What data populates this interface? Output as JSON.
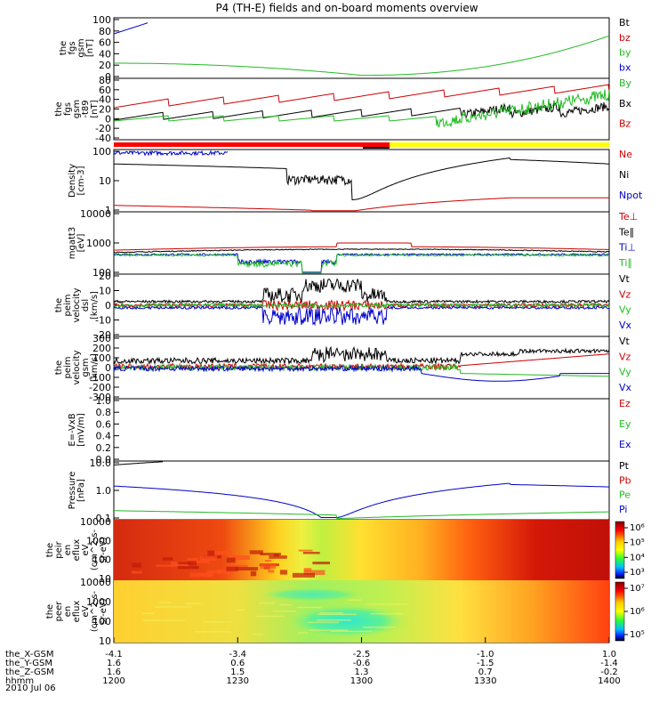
{
  "title": "P4 (TH-E) fields and on-board moments overview",
  "panels": [
    {
      "ylabel": [
        "the",
        "fgs",
        "gsm",
        "[nT]"
      ],
      "ticks": [
        "100",
        "80",
        "60",
        "40",
        "20",
        "0"
      ],
      "legend": [
        {
          "text": "Bt",
          "color": "#000000"
        },
        {
          "text": "bz",
          "color": "#cc0000"
        },
        {
          "text": "by",
          "color": "#22bb22"
        },
        {
          "text": "bx",
          "color": "#0000cc"
        }
      ]
    },
    {
      "ylabel": [
        "the",
        "fgs",
        "gsm",
        "-t89",
        "[nT]"
      ],
      "ticks": [
        "80",
        "60",
        "40",
        "20",
        "0",
        "-20",
        "-40"
      ],
      "legend": [
        {
          "text": "By",
          "color": "#22bb22"
        },
        {
          "text": "Bx",
          "color": "#000000"
        },
        {
          "text": "Bz",
          "color": "#cc0000"
        }
      ]
    },
    {
      "ylabel": [
        "Density",
        "[cm-3]"
      ],
      "ticks": [
        "100",
        "10",
        "1"
      ],
      "legend": [
        {
          "text": "Ne",
          "color": "#cc0000"
        },
        {
          "text": "Ni",
          "color": "#000000"
        },
        {
          "text": "Npot",
          "color": "#0000cc"
        }
      ]
    },
    {
      "ylabel": [
        "mgatt3",
        "[eV]"
      ],
      "ticks": [
        "10000",
        "1000",
        "100"
      ],
      "legend": [
        {
          "text": "Te⊥",
          "color": "#cc0000"
        },
        {
          "text": "Te∥",
          "color": "#000000"
        },
        {
          "text": "Ti⊥",
          "color": "#0000cc"
        },
        {
          "text": "Ti∥",
          "color": "#22bb22"
        }
      ]
    },
    {
      "ylabel": [
        "the",
        "peim",
        "velocity",
        "dsl",
        "[km/s]"
      ],
      "ticks": [
        "20",
        "10",
        "0",
        "-10",
        "-20"
      ],
      "legend": [
        {
          "text": "Vt",
          "color": "#000000"
        },
        {
          "text": "Vz",
          "color": "#cc0000"
        },
        {
          "text": "Vy",
          "color": "#22bb22"
        },
        {
          "text": "Vx",
          "color": "#0000cc"
        }
      ]
    },
    {
      "ylabel": [
        "the",
        "peim",
        "velocity",
        "gsm",
        "[km/s]"
      ],
      "ticks": [
        "300",
        "200",
        "100",
        "0",
        "-100",
        "-200",
        "-300"
      ],
      "legend": [
        {
          "text": "Vt",
          "color": "#000000"
        },
        {
          "text": "Vz",
          "color": "#cc0000"
        },
        {
          "text": "Vy",
          "color": "#22bb22"
        },
        {
          "text": "Vx",
          "color": "#0000cc"
        }
      ]
    },
    {
      "ylabel": [
        "E=-VxB",
        "[mV/m]"
      ],
      "ticks": [
        "1.0",
        "0.8",
        "0.6",
        "0.4",
        "0.2",
        "0.0"
      ],
      "legend": [
        {
          "text": "Ez",
          "color": "#cc0000"
        },
        {
          "text": "Ey",
          "color": "#22bb22"
        },
        {
          "text": "Ex",
          "color": "#0000cc"
        }
      ]
    },
    {
      "ylabel": [
        "Pressure",
        "[nPa]"
      ],
      "ticks": [
        "10.0",
        "1.0",
        "0.1"
      ],
      "legend": [
        {
          "text": "Pt",
          "color": "#000000"
        },
        {
          "text": "Pb",
          "color": "#cc0000"
        },
        {
          "text": "Pe",
          "color": "#22bb22"
        },
        {
          "text": "Pi",
          "color": "#0000cc"
        }
      ]
    },
    {
      "ylabel": [
        "the",
        "peir",
        "en",
        "eflux",
        "eV",
        "(cm^2-s-",
        "sr-eV)"
      ],
      "ticks": [
        "10000",
        "1000",
        "100",
        "10"
      ],
      "colorbar": [
        "10⁶",
        "10⁵",
        "10⁴",
        "10³"
      ]
    },
    {
      "ylabel": [
        "the",
        "peer",
        "en",
        "eflux",
        "eV",
        "(cm^2-s-",
        "sr-eV)"
      ],
      "ticks": [
        "10000",
        "1000",
        "100",
        "10"
      ],
      "colorbar": [
        "10⁷",
        "10⁶",
        "10⁵"
      ]
    }
  ],
  "xaxis": {
    "rows": [
      {
        "label": "the_X-GSM",
        "values": [
          "-4.1",
          "-3.4",
          "-2.5",
          "-1.0",
          "1.0"
        ]
      },
      {
        "label": "the_Y-GSM",
        "values": [
          "1.6",
          "0.6",
          "-0.6",
          "-1.5",
          "-1.4"
        ]
      },
      {
        "label": "the_Z-GSM",
        "values": [
          "1.6",
          "1.5",
          "1.3",
          "0.7",
          "-0.2"
        ]
      },
      {
        "label": "hhmm",
        "values": [
          "1200",
          "1230",
          "1300",
          "1330",
          "1400"
        ]
      }
    ],
    "date": "2010 Jul 06"
  },
  "colors": {
    "black": "#000000",
    "red": "#cc0000",
    "green": "#22bb22",
    "blue": "#0000cc",
    "mode_red": "#ff0000",
    "mode_yellow": "#ffff00"
  },
  "chart_data": {
    "type": "line",
    "title": "P4 (TH-E) fields and on-board moments overview",
    "x_time_ticks": [
      "1200",
      "1230",
      "1300",
      "1330",
      "1400"
    ],
    "series_approx": {
      "fgs_gsm": {
        "Bt": [
          20,
          19,
          18,
          16,
          6,
          5,
          18,
          40,
          100
        ],
        "by": [
          25,
          24,
          23,
          20,
          10,
          5,
          15,
          45,
          100
        ]
      },
      "density_Ni": [
        60,
        50,
        30,
        5,
        2,
        3,
        10,
        40,
        40
      ],
      "density_Ne": [
        0.8,
        0.7,
        0.6,
        0.4,
        0.3,
        0.5,
        1,
        2,
        2
      ],
      "pressure_Pi": [
        0.9,
        0.7,
        0.4,
        0.2,
        0.05,
        0.2,
        0.6,
        1.2,
        1.2
      ]
    }
  }
}
